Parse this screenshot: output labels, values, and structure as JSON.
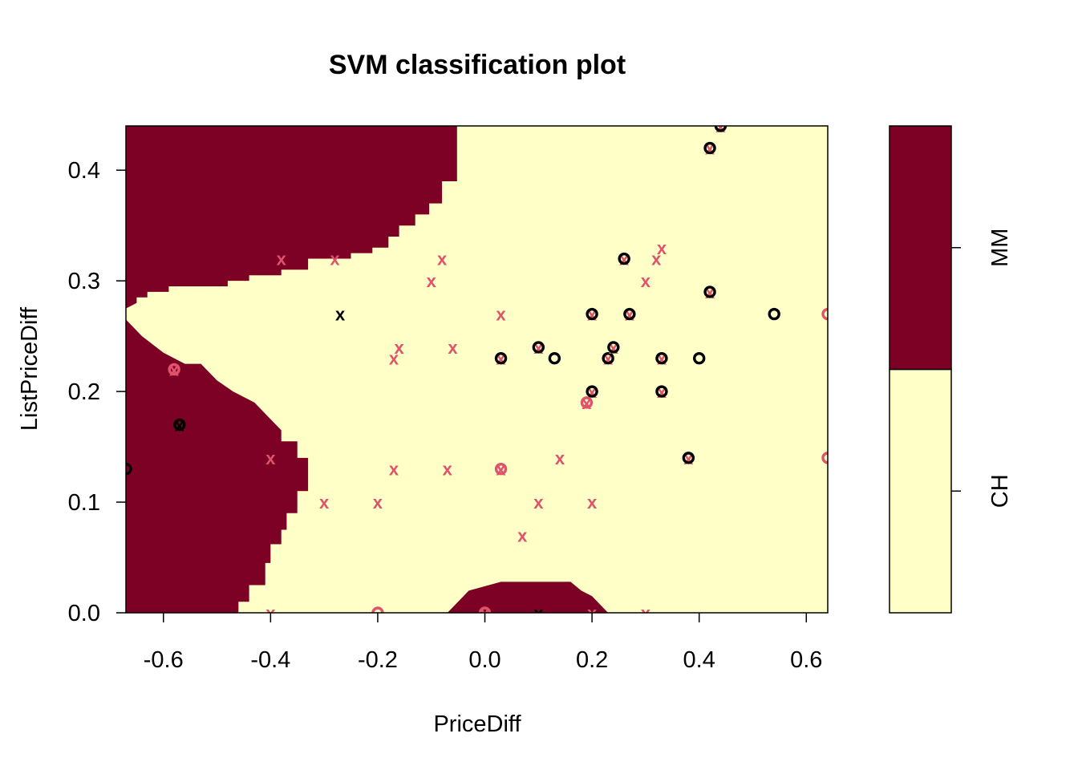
{
  "chart_data": {
    "type": "scatter",
    "title": "SVM classification plot",
    "xlabel": "PriceDiff",
    "ylabel": "ListPriceDiff",
    "xlim": [
      -0.67,
      0.64
    ],
    "ylim": [
      0.0,
      0.44
    ],
    "xticks": [
      -0.6,
      -0.4,
      -0.2,
      0.0,
      0.2,
      0.4,
      0.6
    ],
    "xtick_labels": [
      "-0.6",
      "-0.4",
      "-0.2",
      "0.0",
      "0.2",
      "0.4",
      "0.6"
    ],
    "yticks": [
      0.0,
      0.1,
      0.2,
      0.3,
      0.4
    ],
    "ytick_labels": [
      "0.0",
      "0.1",
      "0.2",
      "0.3",
      "0.4"
    ],
    "grid": false,
    "legend_position": "right",
    "classes": [
      {
        "name": "CH",
        "color": "#FFFFC8"
      },
      {
        "name": "MM",
        "color": "#7D0025"
      }
    ],
    "marker_colors": {
      "CH": "#000000",
      "MM": "#DF536B"
    },
    "marker_symbols": {
      "support_vector": "x",
      "data_point": "o"
    },
    "points": [
      {
        "x": -0.67,
        "y": 0.13,
        "symbol": "o",
        "class": "CH"
      },
      {
        "x": -0.58,
        "y": 0.22,
        "symbol": "x",
        "class": "MM"
      },
      {
        "x": -0.58,
        "y": 0.22,
        "symbol": "o",
        "class": "MM"
      },
      {
        "x": -0.57,
        "y": 0.17,
        "symbol": "x",
        "class": "CH"
      },
      {
        "x": -0.57,
        "y": 0.17,
        "symbol": "o",
        "class": "CH"
      },
      {
        "x": -0.4,
        "y": 0.14,
        "symbol": "x",
        "class": "MM"
      },
      {
        "x": -0.4,
        "y": 0.0,
        "symbol": "x",
        "class": "MM"
      },
      {
        "x": -0.38,
        "y": 0.32,
        "symbol": "x",
        "class": "MM"
      },
      {
        "x": -0.3,
        "y": 0.1,
        "symbol": "x",
        "class": "MM"
      },
      {
        "x": -0.28,
        "y": 0.32,
        "symbol": "x",
        "class": "MM"
      },
      {
        "x": -0.27,
        "y": 0.27,
        "symbol": "x",
        "class": "CH"
      },
      {
        "x": -0.2,
        "y": 0.1,
        "symbol": "x",
        "class": "MM"
      },
      {
        "x": -0.2,
        "y": 0.0,
        "symbol": "o",
        "class": "MM"
      },
      {
        "x": -0.17,
        "y": 0.23,
        "symbol": "x",
        "class": "MM"
      },
      {
        "x": -0.16,
        "y": 0.24,
        "symbol": "x",
        "class": "MM"
      },
      {
        "x": -0.17,
        "y": 0.13,
        "symbol": "x",
        "class": "MM"
      },
      {
        "x": -0.1,
        "y": 0.3,
        "symbol": "x",
        "class": "MM"
      },
      {
        "x": -0.08,
        "y": 0.32,
        "symbol": "x",
        "class": "MM"
      },
      {
        "x": -0.07,
        "y": 0.13,
        "symbol": "x",
        "class": "MM"
      },
      {
        "x": -0.06,
        "y": 0.24,
        "symbol": "x",
        "class": "MM"
      },
      {
        "x": 0.0,
        "y": 0.0,
        "symbol": "x",
        "class": "MM"
      },
      {
        "x": 0.0,
        "y": 0.0,
        "symbol": "o",
        "class": "MM"
      },
      {
        "x": 0.03,
        "y": 0.27,
        "symbol": "x",
        "class": "MM"
      },
      {
        "x": 0.03,
        "y": 0.23,
        "symbol": "x",
        "class": "MM"
      },
      {
        "x": 0.03,
        "y": 0.23,
        "symbol": "o",
        "class": "CH"
      },
      {
        "x": 0.03,
        "y": 0.13,
        "symbol": "x",
        "class": "MM"
      },
      {
        "x": 0.03,
        "y": 0.13,
        "symbol": "o",
        "class": "MM"
      },
      {
        "x": 0.07,
        "y": 0.07,
        "symbol": "x",
        "class": "MM"
      },
      {
        "x": 0.1,
        "y": 0.24,
        "symbol": "x",
        "class": "MM"
      },
      {
        "x": 0.1,
        "y": 0.24,
        "symbol": "o",
        "class": "CH"
      },
      {
        "x": 0.1,
        "y": 0.1,
        "symbol": "x",
        "class": "MM"
      },
      {
        "x": 0.1,
        "y": 0.0,
        "symbol": "x",
        "class": "CH"
      },
      {
        "x": 0.13,
        "y": 0.23,
        "symbol": "o",
        "class": "CH"
      },
      {
        "x": 0.14,
        "y": 0.14,
        "symbol": "x",
        "class": "MM"
      },
      {
        "x": 0.19,
        "y": 0.19,
        "symbol": "x",
        "class": "MM"
      },
      {
        "x": 0.19,
        "y": 0.19,
        "symbol": "o",
        "class": "MM"
      },
      {
        "x": 0.2,
        "y": 0.2,
        "symbol": "x",
        "class": "MM"
      },
      {
        "x": 0.2,
        "y": 0.2,
        "symbol": "o",
        "class": "CH"
      },
      {
        "x": 0.2,
        "y": 0.27,
        "symbol": "x",
        "class": "MM"
      },
      {
        "x": 0.2,
        "y": 0.27,
        "symbol": "o",
        "class": "CH"
      },
      {
        "x": 0.2,
        "y": 0.1,
        "symbol": "x",
        "class": "MM"
      },
      {
        "x": 0.2,
        "y": 0.0,
        "symbol": "x",
        "class": "MM"
      },
      {
        "x": 0.23,
        "y": 0.23,
        "symbol": "x",
        "class": "MM"
      },
      {
        "x": 0.23,
        "y": 0.23,
        "symbol": "o",
        "class": "CH"
      },
      {
        "x": 0.24,
        "y": 0.24,
        "symbol": "x",
        "class": "MM"
      },
      {
        "x": 0.24,
        "y": 0.24,
        "symbol": "o",
        "class": "CH"
      },
      {
        "x": 0.26,
        "y": 0.32,
        "symbol": "x",
        "class": "MM"
      },
      {
        "x": 0.26,
        "y": 0.32,
        "symbol": "o",
        "class": "CH"
      },
      {
        "x": 0.27,
        "y": 0.27,
        "symbol": "x",
        "class": "MM"
      },
      {
        "x": 0.27,
        "y": 0.27,
        "symbol": "o",
        "class": "CH"
      },
      {
        "x": 0.3,
        "y": 0.3,
        "symbol": "x",
        "class": "MM"
      },
      {
        "x": 0.3,
        "y": 0.0,
        "symbol": "x",
        "class": "MM"
      },
      {
        "x": 0.32,
        "y": 0.32,
        "symbol": "x",
        "class": "MM"
      },
      {
        "x": 0.33,
        "y": 0.33,
        "symbol": "x",
        "class": "MM"
      },
      {
        "x": 0.33,
        "y": 0.23,
        "symbol": "x",
        "class": "MM"
      },
      {
        "x": 0.33,
        "y": 0.23,
        "symbol": "o",
        "class": "CH"
      },
      {
        "x": 0.33,
        "y": 0.2,
        "symbol": "x",
        "class": "MM"
      },
      {
        "x": 0.33,
        "y": 0.2,
        "symbol": "o",
        "class": "CH"
      },
      {
        "x": 0.38,
        "y": 0.14,
        "symbol": "x",
        "class": "MM"
      },
      {
        "x": 0.38,
        "y": 0.14,
        "symbol": "o",
        "class": "CH"
      },
      {
        "x": 0.4,
        "y": 0.23,
        "symbol": "o",
        "class": "CH"
      },
      {
        "x": 0.42,
        "y": 0.42,
        "symbol": "x",
        "class": "MM"
      },
      {
        "x": 0.42,
        "y": 0.42,
        "symbol": "o",
        "class": "CH"
      },
      {
        "x": 0.42,
        "y": 0.29,
        "symbol": "x",
        "class": "MM"
      },
      {
        "x": 0.42,
        "y": 0.29,
        "symbol": "o",
        "class": "CH"
      },
      {
        "x": 0.44,
        "y": 0.44,
        "symbol": "x",
        "class": "MM"
      },
      {
        "x": 0.44,
        "y": 0.44,
        "symbol": "o",
        "class": "CH"
      },
      {
        "x": 0.54,
        "y": 0.27,
        "symbol": "o",
        "class": "CH"
      },
      {
        "x": 0.64,
        "y": 0.27,
        "symbol": "o",
        "class": "MM"
      },
      {
        "x": 0.64,
        "y": 0.14,
        "symbol": "o",
        "class": "MM"
      }
    ],
    "decision_regions": [
      {
        "class": "MM",
        "polygon": [
          [
            -0.67,
            0.44
          ],
          [
            -0.052,
            0.44
          ],
          [
            -0.052,
            0.39
          ],
          [
            -0.08,
            0.39
          ],
          [
            -0.08,
            0.37
          ],
          [
            -0.104,
            0.37
          ],
          [
            -0.104,
            0.36
          ],
          [
            -0.13,
            0.36
          ],
          [
            -0.13,
            0.35
          ],
          [
            -0.16,
            0.35
          ],
          [
            -0.16,
            0.34
          ],
          [
            -0.18,
            0.34
          ],
          [
            -0.18,
            0.33
          ],
          [
            -0.21,
            0.33
          ],
          [
            -0.21,
            0.325
          ],
          [
            -0.25,
            0.325
          ],
          [
            -0.25,
            0.32
          ],
          [
            -0.33,
            0.32
          ],
          [
            -0.33,
            0.31
          ],
          [
            -0.38,
            0.31
          ],
          [
            -0.38,
            0.305
          ],
          [
            -0.44,
            0.305
          ],
          [
            -0.44,
            0.3
          ],
          [
            -0.48,
            0.3
          ],
          [
            -0.48,
            0.295
          ],
          [
            -0.59,
            0.295
          ],
          [
            -0.59,
            0.29
          ],
          [
            -0.63,
            0.29
          ],
          [
            -0.63,
            0.285
          ],
          [
            -0.65,
            0.285
          ],
          [
            -0.65,
            0.28
          ],
          [
            -0.67,
            0.275
          ]
        ]
      },
      {
        "class": "MM",
        "polygon": [
          [
            -0.67,
            0.265
          ],
          [
            -0.64,
            0.25
          ],
          [
            -0.6,
            0.235
          ],
          [
            -0.56,
            0.225
          ],
          [
            -0.53,
            0.225
          ],
          [
            -0.5,
            0.21
          ],
          [
            -0.47,
            0.2
          ],
          [
            -0.43,
            0.19
          ],
          [
            -0.4,
            0.175
          ],
          [
            -0.38,
            0.165
          ],
          [
            -0.38,
            0.155
          ],
          [
            -0.35,
            0.155
          ],
          [
            -0.35,
            0.14
          ],
          [
            -0.33,
            0.14
          ],
          [
            -0.33,
            0.12
          ],
          [
            -0.33,
            0.11
          ],
          [
            -0.35,
            0.11
          ],
          [
            -0.35,
            0.09
          ],
          [
            -0.37,
            0.09
          ],
          [
            -0.37,
            0.075
          ],
          [
            -0.38,
            0.075
          ],
          [
            -0.38,
            0.062
          ],
          [
            -0.4,
            0.062
          ],
          [
            -0.4,
            0.045
          ],
          [
            -0.41,
            0.045
          ],
          [
            -0.41,
            0.025
          ],
          [
            -0.44,
            0.025
          ],
          [
            -0.44,
            0.01
          ],
          [
            -0.46,
            0.01
          ],
          [
            -0.46,
            0.0
          ],
          [
            -0.67,
            0.0
          ]
        ]
      },
      {
        "class": "MM",
        "polygon": [
          [
            -0.07,
            0.0
          ],
          [
            -0.05,
            0.01
          ],
          [
            -0.03,
            0.02
          ],
          [
            0.03,
            0.028
          ],
          [
            0.16,
            0.028
          ],
          [
            0.18,
            0.02
          ],
          [
            0.2,
            0.015
          ],
          [
            0.23,
            0.0
          ]
        ]
      }
    ]
  }
}
